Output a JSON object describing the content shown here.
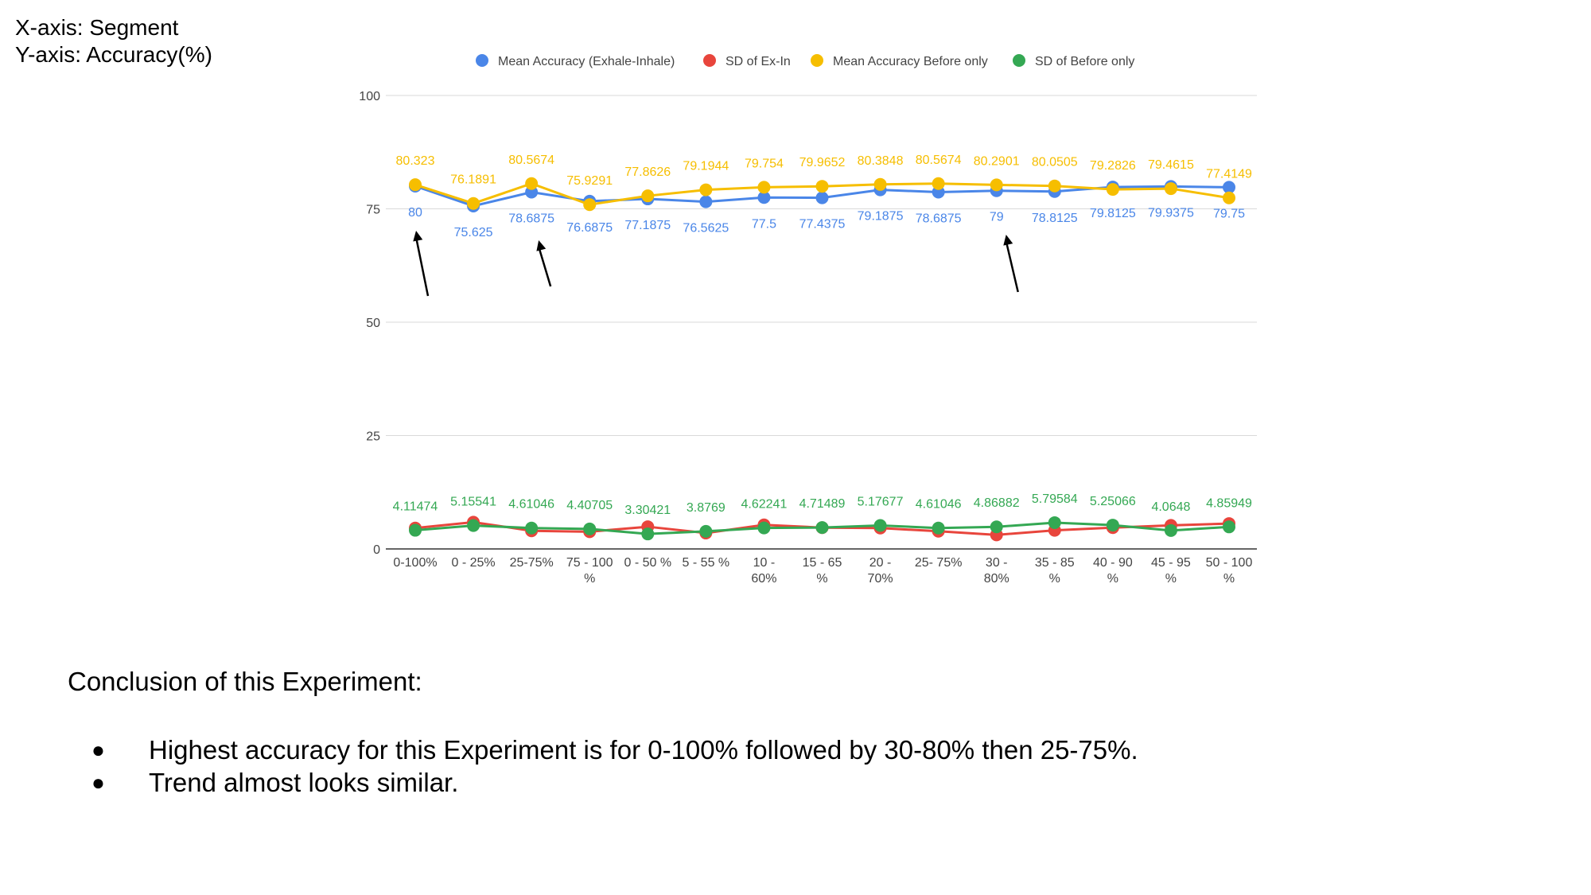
{
  "axis_info": {
    "x_line": "X-axis: Segment",
    "y_line": "Y-axis: Accuracy(%)"
  },
  "chart_data": {
    "type": "line",
    "categories": [
      [
        "0-100%"
      ],
      [
        "0 - 25%"
      ],
      [
        "25-75%"
      ],
      [
        "75 - 100",
        "%"
      ],
      [
        "0 - 50 %"
      ],
      [
        "5 - 55 %"
      ],
      [
        "10 -",
        "60%"
      ],
      [
        "15 - 65",
        "%"
      ],
      [
        "20 -",
        "70%"
      ],
      [
        "25- 75%"
      ],
      [
        "30 -",
        "80%"
      ],
      [
        "35 - 85",
        "%"
      ],
      [
        "40 - 90",
        "%"
      ],
      [
        "45 - 95",
        "%"
      ],
      [
        "50 - 100",
        "%"
      ]
    ],
    "ylim": [
      0,
      100
    ],
    "yticks": [
      0,
      25,
      50,
      75,
      100
    ],
    "grid": true,
    "legend_position": "top",
    "series": [
      {
        "name": "Mean Accuracy (Exhale-Inhale)",
        "color": "#4a86e8",
        "values": [
          80,
          75.625,
          78.6875,
          76.6875,
          77.1875,
          76.5625,
          77.5,
          77.4375,
          79.1875,
          78.6875,
          79,
          78.8125,
          79.8125,
          79.9375,
          79.75
        ],
        "labels": [
          "80",
          "75.625",
          "78.6875",
          "76.6875",
          "77.1875",
          "76.5625",
          "77.5",
          "77.4375",
          "79.1875",
          "78.6875",
          "79",
          "78.8125",
          "79.8125",
          "79.9375",
          "79.75"
        ],
        "label_position": "below"
      },
      {
        "name": "SD of Ex-In",
        "color": "#e8453c",
        "values": [
          4.6,
          5.9,
          4.0,
          3.8,
          4.9,
          3.5,
          5.3,
          4.7,
          4.6,
          3.9,
          3.1,
          4.1,
          4.7,
          5.2,
          5.6
        ],
        "labels": [],
        "label_position": "none"
      },
      {
        "name": "Mean Accuracy Before only",
        "color": "#f6be00",
        "values": [
          80.323,
          76.1891,
          80.5674,
          75.9291,
          77.8626,
          79.1944,
          79.754,
          79.9652,
          80.3848,
          80.5674,
          80.2901,
          80.0505,
          79.2826,
          79.4615,
          77.4149
        ],
        "labels": [
          "80.323",
          "76.1891",
          "80.5674",
          "75.9291",
          "77.8626",
          "79.1944",
          "79.754",
          "79.9652",
          "80.3848",
          "80.5674",
          "80.2901",
          "80.0505",
          "79.2826",
          "79.4615",
          "77.4149"
        ],
        "label_position": "above"
      },
      {
        "name": "SD of Before only",
        "color": "#34a853",
        "values": [
          4.11474,
          5.15541,
          4.61046,
          4.40705,
          3.30421,
          3.8769,
          4.62241,
          4.71489,
          5.17677,
          4.61046,
          4.86882,
          5.79584,
          5.25066,
          4.0648,
          4.85949
        ],
        "labels": [
          "4.11474",
          "5.15541",
          "4.61046",
          "4.40705",
          "3.30421",
          "3.8769",
          "4.62241",
          "4.71489",
          "5.17677",
          "4.61046",
          "4.86882",
          "5.79584",
          "5.25066",
          "4.0648",
          "4.85949"
        ],
        "label_position": "above"
      }
    ],
    "annotations": [
      {
        "type": "arrow",
        "points_to_category": 0
      },
      {
        "type": "arrow",
        "points_to_category": 2
      },
      {
        "type": "arrow",
        "points_to_category": 10
      }
    ]
  },
  "conclusion": {
    "title": "Conclusion of this Experiment:",
    "bullets": [
      "Highest accuracy for this Experiment is for 0-100% followed by 30-80% then 25-75%.",
      "Trend almost looks similar."
    ],
    "bullet_glyph": "●"
  }
}
